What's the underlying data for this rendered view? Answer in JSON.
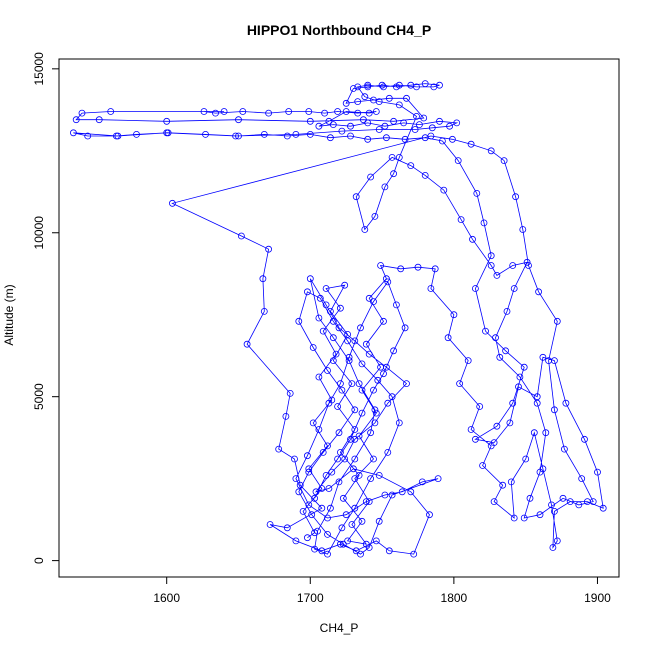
{
  "chart_data": {
    "type": "line",
    "title": "HIPPO1 Northbound CH4_P",
    "xlabel": "CH4_P",
    "ylabel": "Altitude (m)",
    "xlim": [
      1525,
      1915
    ],
    "ylim": [
      -500,
      15300
    ],
    "xticks": [
      1600,
      1700,
      1800,
      1900
    ],
    "yticks": [
      0,
      5000,
      10000,
      15000
    ],
    "grid": false,
    "legend": "none",
    "colors": {
      "series": "#0000ff",
      "axis": "#000000"
    },
    "series": [
      {
        "marker": "open-circle",
        "points": [
          [
            1698,
            700
          ],
          [
            1703,
            850
          ],
          [
            1695,
            1500
          ],
          [
            1708,
            2200
          ],
          [
            1699,
            2800
          ],
          [
            1712,
            3500
          ],
          [
            1702,
            4200
          ],
          [
            1715,
            4900
          ],
          [
            1706,
            5600
          ],
          [
            1718,
            6300
          ],
          [
            1709,
            7000
          ],
          [
            1721,
            7700
          ],
          [
            1711,
            8300
          ],
          [
            1724,
            8400
          ],
          [
            1714,
            7600
          ],
          [
            1726,
            6900
          ],
          [
            1716,
            6100
          ],
          [
            1729,
            5400
          ],
          [
            1719,
            4700
          ],
          [
            1731,
            4000
          ],
          [
            1721,
            3300
          ],
          [
            1734,
            2600
          ],
          [
            1723,
            1900
          ],
          [
            1736,
            1200
          ],
          [
            1726,
            600
          ],
          [
            1739,
            500
          ],
          [
            1729,
            1100
          ],
          [
            1741,
            1800
          ],
          [
            1731,
            2500
          ],
          [
            1744,
            3100
          ],
          [
            1734,
            3800
          ],
          [
            1746,
            4500
          ],
          [
            1736,
            5200
          ],
          [
            1749,
            5900
          ],
          [
            1739,
            6600
          ],
          [
            1751,
            7300
          ],
          [
            1741,
            8000
          ],
          [
            1753,
            8600
          ],
          [
            1749,
            9000
          ],
          [
            1763,
            8900
          ],
          [
            1775,
            8950
          ],
          [
            1787,
            8900
          ],
          [
            1784,
            8300
          ],
          [
            1800,
            7500
          ],
          [
            1796,
            6800
          ],
          [
            1810,
            6100
          ],
          [
            1804,
            5400
          ],
          [
            1818,
            4700
          ],
          [
            1812,
            4000
          ],
          [
            1826,
            3500
          ],
          [
            1820,
            2900
          ],
          [
            1834,
            2300
          ],
          [
            1828,
            1800
          ],
          [
            1842,
            1300
          ],
          [
            1840,
            2400
          ],
          [
            1850,
            3100
          ],
          [
            1856,
            3900
          ],
          [
            1862,
            2800
          ],
          [
            1868,
            1700
          ],
          [
            1872,
            600
          ],
          [
            1869,
            400
          ],
          [
            1870,
            1500
          ],
          [
            1881,
            1800
          ],
          [
            1893,
            1800
          ],
          [
            1904,
            1600
          ],
          [
            1900,
            2700
          ],
          [
            1891,
            3700
          ],
          [
            1878,
            4800
          ],
          [
            1870,
            6100
          ],
          [
            1862,
            6200
          ],
          [
            1858,
            5000
          ],
          [
            1845,
            5300
          ],
          [
            1839,
            4200
          ],
          [
            1828,
            3600
          ],
          [
            1815,
            3700
          ],
          [
            1830,
            4100
          ],
          [
            1841,
            4800
          ],
          [
            1849,
            5900
          ],
          [
            1836,
            6400
          ],
          [
            1822,
            7000
          ],
          [
            1815,
            8300
          ],
          [
            1826,
            9300
          ],
          [
            1821,
            10300
          ],
          [
            1816,
            11200
          ],
          [
            1803,
            12200
          ],
          [
            1792,
            12800
          ],
          [
            1780,
            12900
          ],
          [
            1766,
            12850
          ],
          [
            1753,
            12900
          ],
          [
            1740,
            12850
          ],
          [
            1728,
            12950
          ],
          [
            1714,
            12900
          ],
          [
            1700,
            13000
          ],
          [
            1684,
            12950
          ],
          [
            1668,
            13000
          ],
          [
            1650,
            12950
          ],
          [
            1627,
            13000
          ],
          [
            1601,
            13050
          ],
          [
            1579,
            13000
          ],
          [
            1565,
            12950
          ],
          [
            1545,
            12950
          ],
          [
            1535,
            13050
          ],
          [
            1566,
            12950
          ],
          [
            1600,
            13050
          ],
          [
            1648,
            12950
          ],
          [
            1690,
            13000
          ],
          [
            1722,
            13100
          ],
          [
            1748,
            13150
          ],
          [
            1773,
            13150
          ],
          [
            1785,
            13200
          ],
          [
            1797,
            13250
          ],
          [
            1802,
            13350
          ],
          [
            1790,
            13400
          ],
          [
            1776,
            13300
          ],
          [
            1765,
            13350
          ],
          [
            1752,
            13250
          ],
          [
            1740,
            13350
          ],
          [
            1728,
            13250
          ],
          [
            1716,
            13300
          ],
          [
            1706,
            13250
          ],
          [
            1713,
            13400
          ],
          [
            1725,
            13700
          ],
          [
            1741,
            13650
          ],
          [
            1746,
            13700
          ],
          [
            1733,
            13650
          ],
          [
            1719,
            13700
          ],
          [
            1710,
            13650
          ],
          [
            1699,
            13700
          ],
          [
            1685,
            13700
          ],
          [
            1671,
            13650
          ],
          [
            1653,
            13700
          ],
          [
            1634,
            13650
          ],
          [
            1626,
            13700
          ],
          [
            1640,
            13700
          ],
          [
            1561,
            13700
          ],
          [
            1541,
            13650
          ],
          [
            1537,
            13450
          ],
          [
            1553,
            13450
          ],
          [
            1600,
            13400
          ],
          [
            1650,
            13450
          ],
          [
            1700,
            13400
          ],
          [
            1737,
            13450
          ],
          [
            1758,
            13400
          ],
          [
            1779,
            13500
          ],
          [
            1767,
            14100
          ],
          [
            1755,
            14100
          ],
          [
            1744,
            14050
          ],
          [
            1733,
            14000
          ],
          [
            1725,
            13950
          ],
          [
            1730,
            14400
          ],
          [
            1740,
            14450
          ],
          [
            1750,
            14500
          ],
          [
            1760,
            14450
          ],
          [
            1770,
            14500
          ],
          [
            1780,
            14550
          ],
          [
            1790,
            14500
          ],
          [
            1786,
            14450
          ],
          [
            1774,
            14450
          ],
          [
            1762,
            14500
          ],
          [
            1751,
            14450
          ],
          [
            1740,
            14500
          ],
          [
            1733,
            14450
          ],
          [
            1738,
            14150
          ],
          [
            1748,
            14000
          ],
          [
            1762,
            13900
          ],
          [
            1774,
            13550
          ],
          [
            1762,
            12300
          ],
          [
            1758,
            11800
          ],
          [
            1752,
            11400
          ],
          [
            1745,
            10500
          ],
          [
            1738,
            10100
          ],
          [
            1732,
            11100
          ],
          [
            1742,
            11700
          ],
          [
            1757,
            12300
          ],
          [
            1770,
            12050
          ],
          [
            1780,
            11750
          ],
          [
            1793,
            11300
          ],
          [
            1805,
            10400
          ],
          [
            1813,
            9800
          ],
          [
            1826,
            9000
          ],
          [
            1830,
            8700
          ],
          [
            1841,
            9000
          ],
          [
            1851,
            9100
          ],
          [
            1842,
            8300
          ],
          [
            1837,
            7600
          ],
          [
            1829,
            6800
          ],
          [
            1832,
            6200
          ],
          [
            1846,
            5600
          ],
          [
            1858,
            4800
          ],
          [
            1864,
            3900
          ],
          [
            1860,
            2700
          ],
          [
            1853,
            1900
          ],
          [
            1849,
            1300
          ],
          [
            1860,
            1400
          ],
          [
            1876,
            1900
          ],
          [
            1887,
            1700
          ],
          [
            1897,
            1800
          ],
          [
            1889,
            2500
          ],
          [
            1877,
            3400
          ],
          [
            1870,
            4600
          ],
          [
            1866,
            6100
          ],
          [
            1872,
            7300
          ],
          [
            1859,
            8200
          ],
          [
            1852,
            9000
          ],
          [
            1848,
            10100
          ],
          [
            1843,
            11100
          ],
          [
            1835,
            12200
          ],
          [
            1826,
            12500
          ],
          [
            1812,
            12700
          ],
          [
            1799,
            12850
          ],
          [
            1784,
            12950
          ],
          [
            1604,
            10900
          ],
          [
            1652,
            9900
          ],
          [
            1671,
            9500
          ],
          [
            1667,
            8600
          ],
          [
            1668,
            7600
          ],
          [
            1656,
            6600
          ],
          [
            1686,
            5100
          ],
          [
            1683,
            4400
          ],
          [
            1678,
            3400
          ],
          [
            1689,
            3100
          ],
          [
            1693,
            2300
          ],
          [
            1708,
            1600
          ],
          [
            1684,
            1000
          ],
          [
            1672,
            1100
          ],
          [
            1690,
            600
          ],
          [
            1708,
            300
          ],
          [
            1721,
            500
          ],
          [
            1732,
            300
          ],
          [
            1746,
            600
          ],
          [
            1755,
            300
          ],
          [
            1772,
            200
          ],
          [
            1783,
            1400
          ],
          [
            1770,
            2100
          ],
          [
            1748,
            2600
          ],
          [
            1730,
            2800
          ],
          [
            1713,
            2200
          ],
          [
            1704,
            2100
          ],
          [
            1715,
            2700
          ],
          [
            1724,
            3100
          ],
          [
            1731,
            3700
          ],
          [
            1745,
            4200
          ],
          [
            1754,
            4800
          ],
          [
            1767,
            5400
          ],
          [
            1753,
            5900
          ],
          [
            1741,
            6300
          ],
          [
            1731,
            6700
          ],
          [
            1720,
            7100
          ],
          [
            1711,
            7800
          ],
          [
            1700,
            8600
          ],
          [
            1706,
            7400
          ],
          [
            1716,
            6800
          ],
          [
            1727,
            6100
          ],
          [
            1734,
            5400
          ],
          [
            1745,
            4600
          ],
          [
            1742,
            3900
          ],
          [
            1731,
            3100
          ],
          [
            1720,
            2400
          ],
          [
            1714,
            1600
          ],
          [
            1705,
            900
          ],
          [
            1703,
            350
          ],
          [
            1712,
            200
          ],
          [
            1722,
            1000
          ],
          [
            1731,
            1600
          ],
          [
            1742,
            2500
          ],
          [
            1754,
            3300
          ],
          [
            1762,
            4200
          ],
          [
            1757,
            5000
          ],
          [
            1747,
            5500
          ],
          [
            1736,
            6000
          ],
          [
            1726,
            6700
          ],
          [
            1716,
            7300
          ],
          [
            1707,
            8000
          ],
          [
            1698,
            8200
          ],
          [
            1692,
            7300
          ],
          [
            1702,
            6500
          ],
          [
            1712,
            5800
          ],
          [
            1722,
            5200
          ],
          [
            1731,
            4600
          ],
          [
            1720,
            3900
          ],
          [
            1709,
            3300
          ],
          [
            1699,
            2700
          ],
          [
            1692,
            2100
          ],
          [
            1701,
            1400
          ],
          [
            1712,
            800
          ],
          [
            1723,
            500
          ],
          [
            1735,
            200
          ],
          [
            1741,
            400
          ],
          [
            1748,
            1200
          ],
          [
            1757,
            2000
          ],
          [
            1789,
            2500
          ],
          [
            1778,
            2400
          ],
          [
            1764,
            2100
          ],
          [
            1752,
            2000
          ],
          [
            1739,
            1800
          ],
          [
            1725,
            1400
          ],
          [
            1712,
            1300
          ],
          [
            1699,
            1700
          ],
          [
            1690,
            2500
          ],
          [
            1698,
            3200
          ],
          [
            1706,
            4000
          ],
          [
            1713,
            4800
          ],
          [
            1721,
            5400
          ],
          [
            1727,
            6200
          ],
          [
            1735,
            7100
          ],
          [
            1744,
            7900
          ],
          [
            1754,
            8500
          ],
          [
            1760,
            7800
          ],
          [
            1766,
            7100
          ],
          [
            1758,
            6400
          ],
          [
            1751,
            5700
          ],
          [
            1744,
            5200
          ],
          [
            1736,
            4500
          ],
          [
            1728,
            3700
          ],
          [
            1719,
            3100
          ],
          [
            1711,
            2600
          ],
          [
            1703,
            1900
          ]
        ]
      }
    ]
  }
}
